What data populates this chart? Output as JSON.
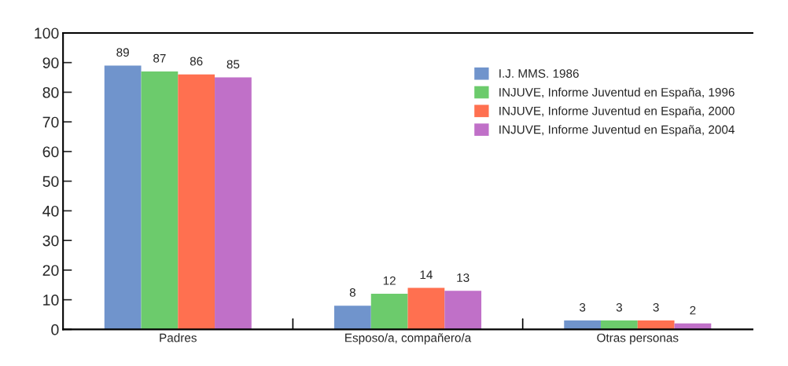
{
  "chart_data": {
    "type": "bar",
    "categories": [
      "Padres",
      "Esposo/a, compañero/a",
      "Otras personas"
    ],
    "series": [
      {
        "name": "I.J. MMS. 1986",
        "color": "#7094cc",
        "values": [
          89,
          8,
          3
        ]
      },
      {
        "name": "INJUVE, Informe Juventud en España, 1996",
        "color": "#6ccb6c",
        "values": [
          87,
          12,
          3
        ]
      },
      {
        "name": "INJUVE, Informe Juventud en España, 2000",
        "color": "#ff7050",
        "values": [
          86,
          14,
          3
        ]
      },
      {
        "name": "INJUVE, Informe Juventud en España, 2004",
        "color": "#c070c8",
        "values": [
          85,
          13,
          2
        ]
      }
    ],
    "ylim": [
      0,
      100
    ],
    "yticks": [
      0,
      10,
      20,
      30,
      40,
      50,
      60,
      70,
      80,
      90,
      100
    ],
    "data_labels": true,
    "grid": false,
    "legend": "top right"
  }
}
